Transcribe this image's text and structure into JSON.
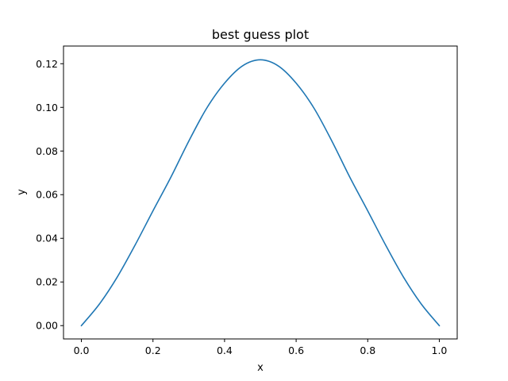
{
  "chart_data": {
    "type": "line",
    "title": "best guess plot",
    "xlabel": "x",
    "ylabel": "y",
    "xlim": [
      -0.05,
      1.05
    ],
    "ylim": [
      -0.0061,
      0.1281
    ],
    "xticks": [
      0.0,
      0.2,
      0.4,
      0.6,
      0.8,
      1.0
    ],
    "xtick_labels": [
      "0.0",
      "0.2",
      "0.4",
      "0.6",
      "0.8",
      "1.0"
    ],
    "yticks": [
      0.0,
      0.02,
      0.04,
      0.06,
      0.08,
      0.1,
      0.12
    ],
    "ytick_labels": [
      "0.00",
      "0.02",
      "0.04",
      "0.06",
      "0.08",
      "0.10",
      "0.12"
    ],
    "grid": false,
    "series": [
      {
        "color": "#1f77b4",
        "x": [
          0.0,
          0.05,
          0.1,
          0.15,
          0.2,
          0.25,
          0.3,
          0.35,
          0.4,
          0.45,
          0.5,
          0.55,
          0.6,
          0.65,
          0.7,
          0.75,
          0.8,
          0.85,
          0.9,
          0.95,
          1.0
        ],
        "y": [
          0.0,
          0.0098,
          0.0222,
          0.0369,
          0.0526,
          0.068,
          0.0845,
          0.0996,
          0.1111,
          0.119,
          0.1218,
          0.119,
          0.1111,
          0.0996,
          0.0845,
          0.068,
          0.0526,
          0.0369,
          0.0222,
          0.0098,
          0.0
        ]
      }
    ]
  }
}
